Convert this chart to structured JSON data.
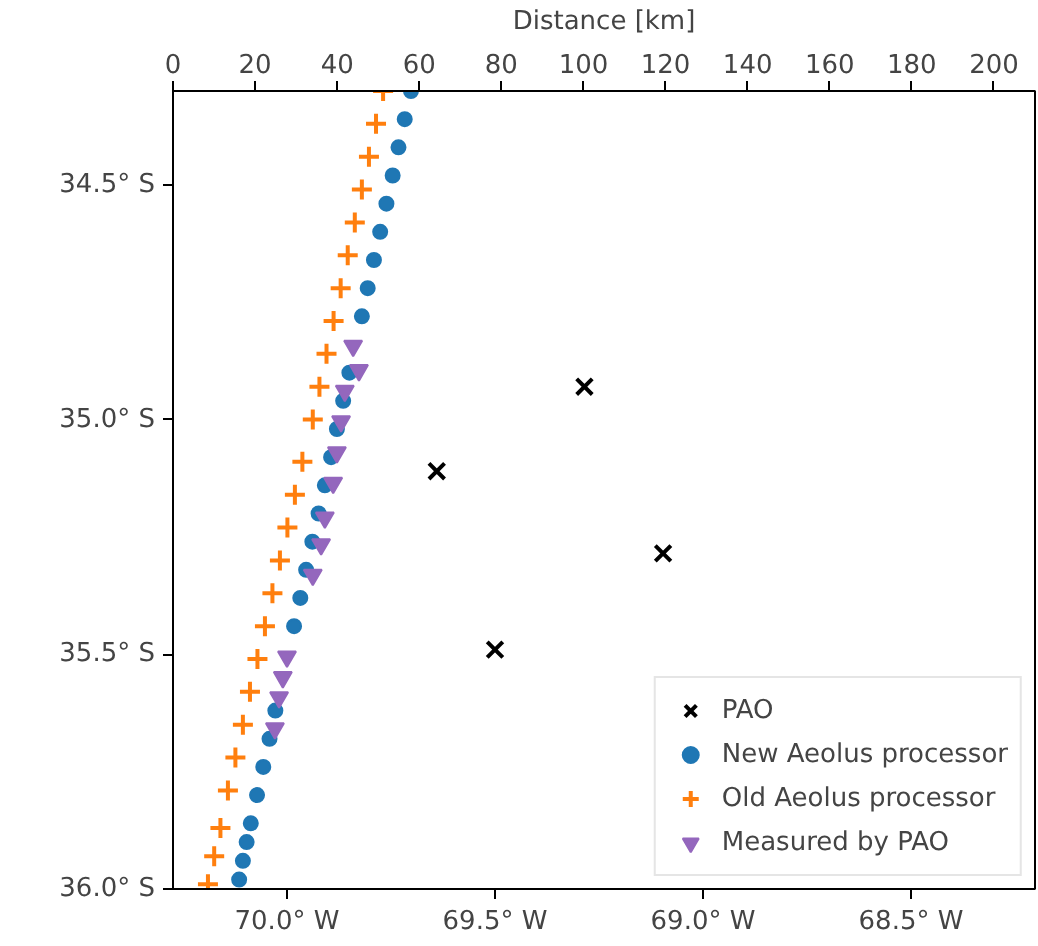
{
  "chart_data": {
    "type": "scatter",
    "x2label": "Distance [km]",
    "xlim": [
      -70.274,
      -68.202
    ],
    "ylim": [
      -36.0,
      -34.3
    ],
    "x2lim": [
      0,
      210
    ],
    "xticks": [
      {
        "value": -70.0,
        "label": "70.0° W"
      },
      {
        "value": -69.5,
        "label": "69.5° W"
      },
      {
        "value": -69.0,
        "label": "69.0° W"
      },
      {
        "value": -68.5,
        "label": "68.5° W"
      }
    ],
    "yticks": [
      {
        "value": -34.5,
        "label": "34.5° S"
      },
      {
        "value": -35.0,
        "label": "35.0° S"
      },
      {
        "value": -35.5,
        "label": "35.5° S"
      },
      {
        "value": -36.0,
        "label": "36.0° S"
      }
    ],
    "x2ticks": [
      0,
      20,
      40,
      60,
      80,
      100,
      120,
      140,
      160,
      180,
      200
    ],
    "grid": false,
    "legend": "bottom right",
    "series": [
      {
        "name": "PAO",
        "color": "#000000",
        "marker": "x",
        "x": [
          -69.64,
          -69.285,
          -69.096,
          -69.5
        ],
        "values": [
          -35.11,
          -34.93,
          -35.285,
          -35.49
        ]
      },
      {
        "name": "New Aeolus processor",
        "color": "#1f77b4",
        "marker": "circle",
        "x": [
          -69.702,
          -69.717,
          -69.732,
          -69.746,
          -69.761,
          -69.776,
          -69.791,
          -69.806,
          -69.82,
          -69.835,
          -69.85,
          -69.865,
          -69.88,
          -69.894,
          -69.909,
          -69.924,
          -69.939,
          -69.954,
          -69.968,
          -69.983,
          -69.998,
          -70.013,
          -70.028,
          -70.042,
          -70.057,
          -70.072,
          -70.087,
          -70.097,
          -70.106,
          -70.115
        ],
        "values": [
          -34.3,
          -34.36,
          -34.42,
          -34.48,
          -34.54,
          -34.6,
          -34.66,
          -34.72,
          -34.78,
          null,
          -34.9,
          -34.96,
          -35.02,
          -35.08,
          -35.14,
          -35.2,
          -35.26,
          -35.32,
          -35.38,
          -35.44,
          null,
          null,
          -35.62,
          -35.68,
          -35.74,
          -35.8,
          -35.86,
          -35.9,
          -35.94,
          -35.98
        ]
      },
      {
        "name": "Old Aeolus processor",
        "color": "#ff7f0e",
        "marker": "plus",
        "x": [
          -69.769,
          -69.786,
          -69.803,
          -69.82,
          -69.837,
          -69.854,
          -69.871,
          -69.888,
          -69.905,
          -69.922,
          -69.938,
          -69.963,
          -69.981,
          -69.999,
          -70.017,
          -70.035,
          -70.053,
          -70.071,
          -70.089,
          -70.106,
          -70.124,
          -70.142,
          -70.16,
          -70.175,
          -70.19
        ],
        "values": [
          -34.3,
          -34.37,
          -34.44,
          -34.51,
          -34.58,
          -34.65,
          -34.72,
          -34.79,
          -34.86,
          -34.93,
          -35.0,
          -35.09,
          -35.16,
          -35.23,
          -35.3,
          -35.37,
          -35.44,
          -35.51,
          -35.58,
          -35.65,
          -35.72,
          -35.79,
          -35.87,
          -35.93,
          -35.99
        ]
      },
      {
        "name": "Measured by PAO",
        "color": "#9467bd",
        "marker": "triangle_down",
        "x": [
          -69.841,
          -69.827,
          -69.861,
          -69.87,
          -69.88,
          -69.889,
          -69.909,
          -69.918,
          -69.938,
          -70.0,
          -70.01,
          -70.019,
          -70.029
        ],
        "values": [
          -34.843,
          -34.895,
          -34.939,
          -35.004,
          -35.07,
          -35.135,
          -35.209,
          -35.266,
          -35.331,
          -35.505,
          -35.549,
          -35.592,
          -35.658
        ]
      }
    ]
  }
}
